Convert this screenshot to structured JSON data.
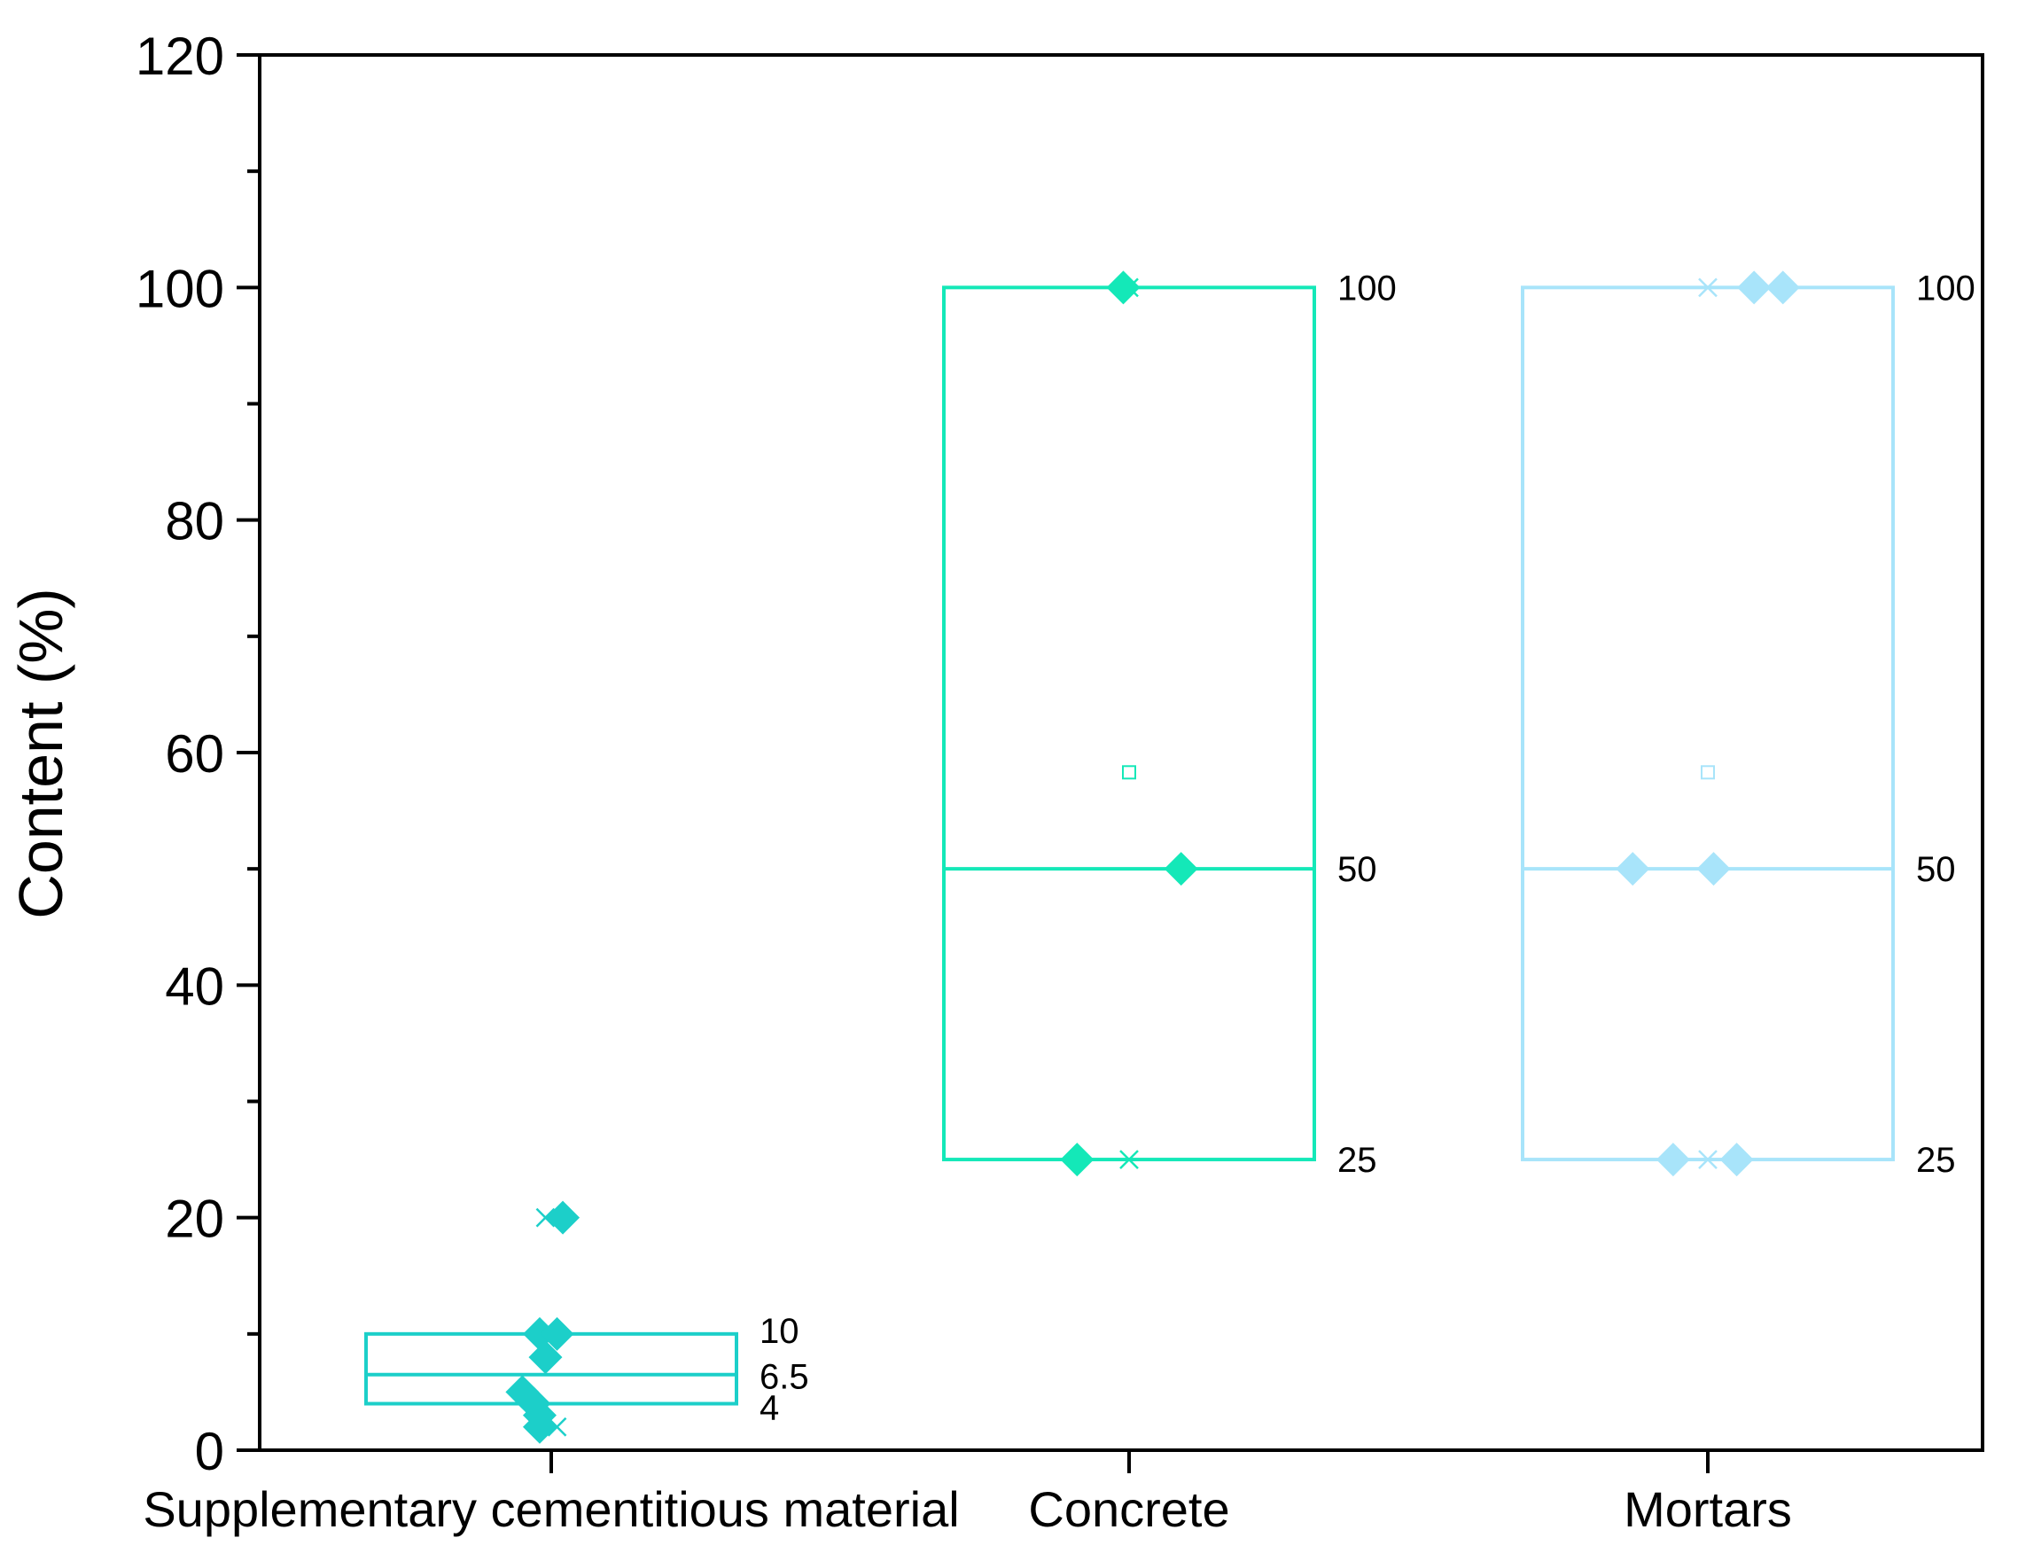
{
  "chart_data": {
    "type": "box",
    "title": "",
    "xlabel": "",
    "ylabel": "Content (%)",
    "ylim": [
      0,
      120
    ],
    "yticks": [
      0,
      20,
      40,
      60,
      80,
      100,
      120
    ],
    "grid": false,
    "categories": [
      "Supplementary cementitious material",
      "Concrete",
      "Mortars"
    ],
    "boxes": [
      {
        "category": "Supplementary cementitious material",
        "color": "#1ccfc9",
        "q1": 4,
        "median": 6.5,
        "q3": 10,
        "mean": null,
        "labels": [
          "10",
          "6.5",
          "4"
        ],
        "points": [
          {
            "jitter": 0.02,
            "value": 20
          },
          {
            "jitter": -0.02,
            "value": 10
          },
          {
            "jitter": 0.01,
            "value": 10
          },
          {
            "jitter": -0.01,
            "value": 8
          },
          {
            "jitter": -0.05,
            "value": 5
          },
          {
            "jitter": -0.03,
            "value": 4
          },
          {
            "jitter": -0.02,
            "value": 3
          },
          {
            "jitter": -0.02,
            "value": 2
          }
        ],
        "extremes": [
          {
            "jitter": -0.01,
            "value": 20
          },
          {
            "jitter": 0.01,
            "value": 2
          }
        ]
      },
      {
        "category": "Concrete",
        "color": "#14e8b8",
        "q1": 25,
        "median": 50,
        "q3": 100,
        "mean": 58.3,
        "labels": [
          "100",
          "50",
          "25"
        ],
        "points": [
          {
            "jitter": -0.01,
            "value": 100
          },
          {
            "jitter": 0.09,
            "value": 50
          },
          {
            "jitter": -0.09,
            "value": 25
          }
        ],
        "extremes": [
          {
            "jitter": 0.0,
            "value": 100
          },
          {
            "jitter": 0.0,
            "value": 25
          }
        ]
      },
      {
        "category": "Mortars",
        "color": "#a8e4fa",
        "q1": 25,
        "median": 50,
        "q3": 100,
        "mean": 58.3,
        "labels": [
          "100",
          "50",
          "25"
        ],
        "points": [
          {
            "jitter": 0.08,
            "value": 100
          },
          {
            "jitter": 0.13,
            "value": 100
          },
          {
            "jitter": -0.13,
            "value": 50
          },
          {
            "jitter": 0.01,
            "value": 50
          },
          {
            "jitter": -0.06,
            "value": 25
          },
          {
            "jitter": 0.05,
            "value": 25
          }
        ],
        "extremes": [
          {
            "jitter": 0.0,
            "value": 100
          },
          {
            "jitter": 0.0,
            "value": 25
          }
        ]
      }
    ]
  }
}
